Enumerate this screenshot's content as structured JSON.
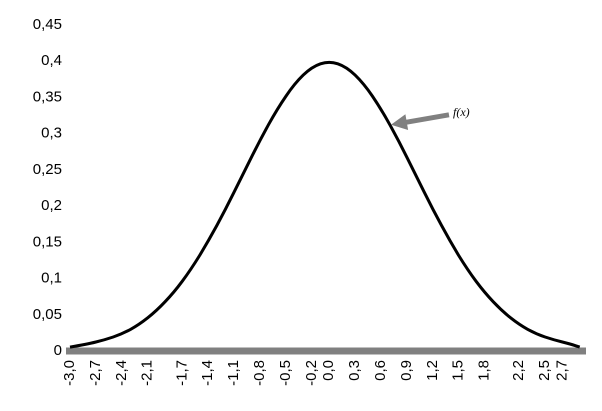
{
  "chart_data": {
    "type": "line",
    "title": "",
    "xlabel": "",
    "ylabel": "",
    "ylim": [
      0,
      0.45
    ],
    "grid": false,
    "legend": "none",
    "y_ticks": [
      {
        "value": 0,
        "label": "0"
      },
      {
        "value": 0.05,
        "label": "0,05"
      },
      {
        "value": 0.1,
        "label": "0,1"
      },
      {
        "value": 0.15,
        "label": "0,15"
      },
      {
        "value": 0.2,
        "label": "0,2"
      },
      {
        "value": 0.25,
        "label": "0,25"
      },
      {
        "value": 0.3,
        "label": "0,3"
      },
      {
        "value": 0.35,
        "label": "0,35"
      },
      {
        "value": 0.4,
        "label": "0,4"
      },
      {
        "value": 0.45,
        "label": "0,45"
      }
    ],
    "x_ticks": [
      {
        "value": -3.0,
        "label": "-3,0"
      },
      {
        "value": -2.7,
        "label": "-2,7"
      },
      {
        "value": -2.4,
        "label": "-2,4"
      },
      {
        "value": -2.1,
        "label": "-2,1"
      },
      {
        "value": -1.7,
        "label": "-1,7"
      },
      {
        "value": -1.4,
        "label": "-1,4"
      },
      {
        "value": -1.1,
        "label": "-1,1"
      },
      {
        "value": -0.8,
        "label": "-0,8"
      },
      {
        "value": -0.5,
        "label": "-0,5"
      },
      {
        "value": -0.2,
        "label": "-0,2"
      },
      {
        "value": 0.0,
        "label": "0,0"
      },
      {
        "value": 0.3,
        "label": "0,3"
      },
      {
        "value": 0.6,
        "label": "0,6"
      },
      {
        "value": 0.9,
        "label": "0,9"
      },
      {
        "value": 1.2,
        "label": "1,2"
      },
      {
        "value": 1.5,
        "label": "1,5"
      },
      {
        "value": 1.8,
        "label": "1,8"
      },
      {
        "value": 2.2,
        "label": "2,2"
      },
      {
        "value": 2.5,
        "label": "2,5"
      },
      {
        "value": 2.7,
        "label": "2,7"
      }
    ],
    "series": [
      {
        "x": [
          -3.0,
          -2.8,
          -2.6,
          -2.4,
          -2.2,
          -2.0,
          -1.8,
          -1.6,
          -1.4,
          -1.2,
          -1.0,
          -0.8,
          -0.6,
          -0.4,
          -0.2,
          0.0,
          0.2,
          0.4,
          0.6,
          0.8,
          1.0,
          1.2,
          1.4,
          1.6,
          1.8,
          2.0,
          2.2,
          2.4,
          2.6,
          2.8,
          2.9
        ],
        "y": [
          0.004,
          0.008,
          0.014,
          0.022,
          0.035,
          0.054,
          0.079,
          0.111,
          0.15,
          0.194,
          0.242,
          0.29,
          0.333,
          0.368,
          0.391,
          0.399,
          0.391,
          0.368,
          0.333,
          0.29,
          0.242,
          0.194,
          0.15,
          0.111,
          0.079,
          0.054,
          0.035,
          0.022,
          0.014,
          0.008,
          0.004
        ],
        "color": "#000000"
      }
    ],
    "annotations": [
      {
        "text": "f(x)",
        "target_x": 0.6,
        "target_y": 0.315,
        "arrow_color": "#808080"
      }
    ],
    "x_axis_color": "#808080"
  }
}
